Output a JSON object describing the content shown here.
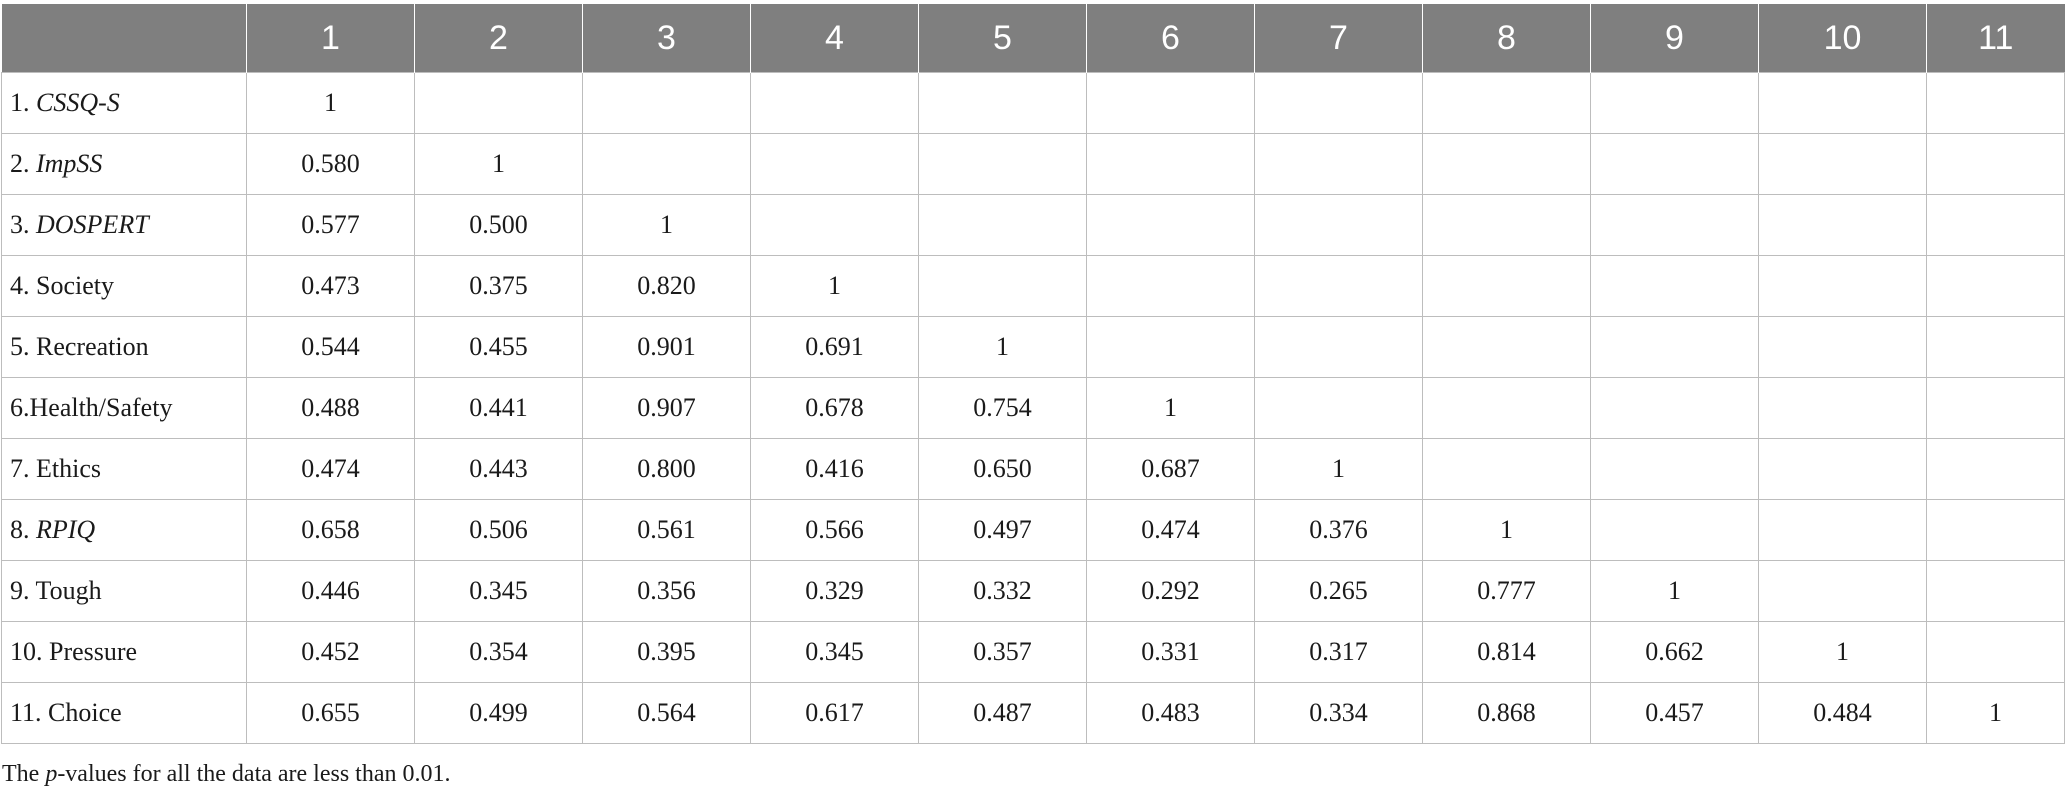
{
  "table": {
    "corner": "",
    "columns": [
      "1",
      "2",
      "3",
      "4",
      "5",
      "6",
      "7",
      "8",
      "9",
      "10",
      "11"
    ],
    "rows": [
      {
        "num": "1. ",
        "name": "CSSQ-S",
        "italic": true,
        "values": [
          "1",
          "",
          "",
          "",
          "",
          "",
          "",
          "",
          "",
          "",
          ""
        ]
      },
      {
        "num": "2. ",
        "name": "ImpSS",
        "italic": true,
        "values": [
          "0.580",
          "1",
          "",
          "",
          "",
          "",
          "",
          "",
          "",
          "",
          ""
        ]
      },
      {
        "num": "3. ",
        "name": "DOSPERT",
        "italic": true,
        "values": [
          "0.577",
          "0.500",
          "1",
          "",
          "",
          "",
          "",
          "",
          "",
          "",
          ""
        ]
      },
      {
        "num": "4. ",
        "name": "Society",
        "italic": false,
        "values": [
          "0.473",
          "0.375",
          "0.820",
          "1",
          "",
          "",
          "",
          "",
          "",
          "",
          ""
        ]
      },
      {
        "num": "5. ",
        "name": "Recreation",
        "italic": false,
        "values": [
          "0.544",
          "0.455",
          "0.901",
          "0.691",
          "1",
          "",
          "",
          "",
          "",
          "",
          ""
        ]
      },
      {
        "num": "6.",
        "name": "Health/Safety",
        "italic": false,
        "values": [
          "0.488",
          "0.441",
          "0.907",
          "0.678",
          "0.754",
          "1",
          "",
          "",
          "",
          "",
          ""
        ]
      },
      {
        "num": "7. ",
        "name": "Ethics",
        "italic": false,
        "values": [
          "0.474",
          "0.443",
          "0.800",
          "0.416",
          "0.650",
          "0.687",
          "1",
          "",
          "",
          "",
          ""
        ]
      },
      {
        "num": "8. ",
        "name": "RPIQ",
        "italic": true,
        "values": [
          "0.658",
          "0.506",
          "0.561",
          "0.566",
          "0.497",
          "0.474",
          "0.376",
          "1",
          "",
          "",
          ""
        ]
      },
      {
        "num": "9. ",
        "name": "Tough",
        "italic": false,
        "values": [
          "0.446",
          "0.345",
          "0.356",
          "0.329",
          "0.332",
          "0.292",
          "0.265",
          "0.777",
          "1",
          "",
          ""
        ]
      },
      {
        "num": "10. ",
        "name": "Pressure",
        "italic": false,
        "values": [
          "0.452",
          "0.354",
          "0.395",
          "0.345",
          "0.357",
          "0.331",
          "0.317",
          "0.814",
          "0.662",
          "1",
          ""
        ]
      },
      {
        "num": "11. ",
        "name": "Choice",
        "italic": false,
        "values": [
          "0.655",
          "0.499",
          "0.564",
          "0.617",
          "0.487",
          "0.483",
          "0.334",
          "0.868",
          "0.457",
          "0.484",
          "1"
        ]
      }
    ]
  },
  "footnote": {
    "before": "The ",
    "italic": "p",
    "after": "-values for all the data are less than 0.01."
  },
  "colors": {
    "header_bg": "#7f7f7f",
    "header_text": "#ffffff",
    "grid": "#bdbdbd"
  }
}
